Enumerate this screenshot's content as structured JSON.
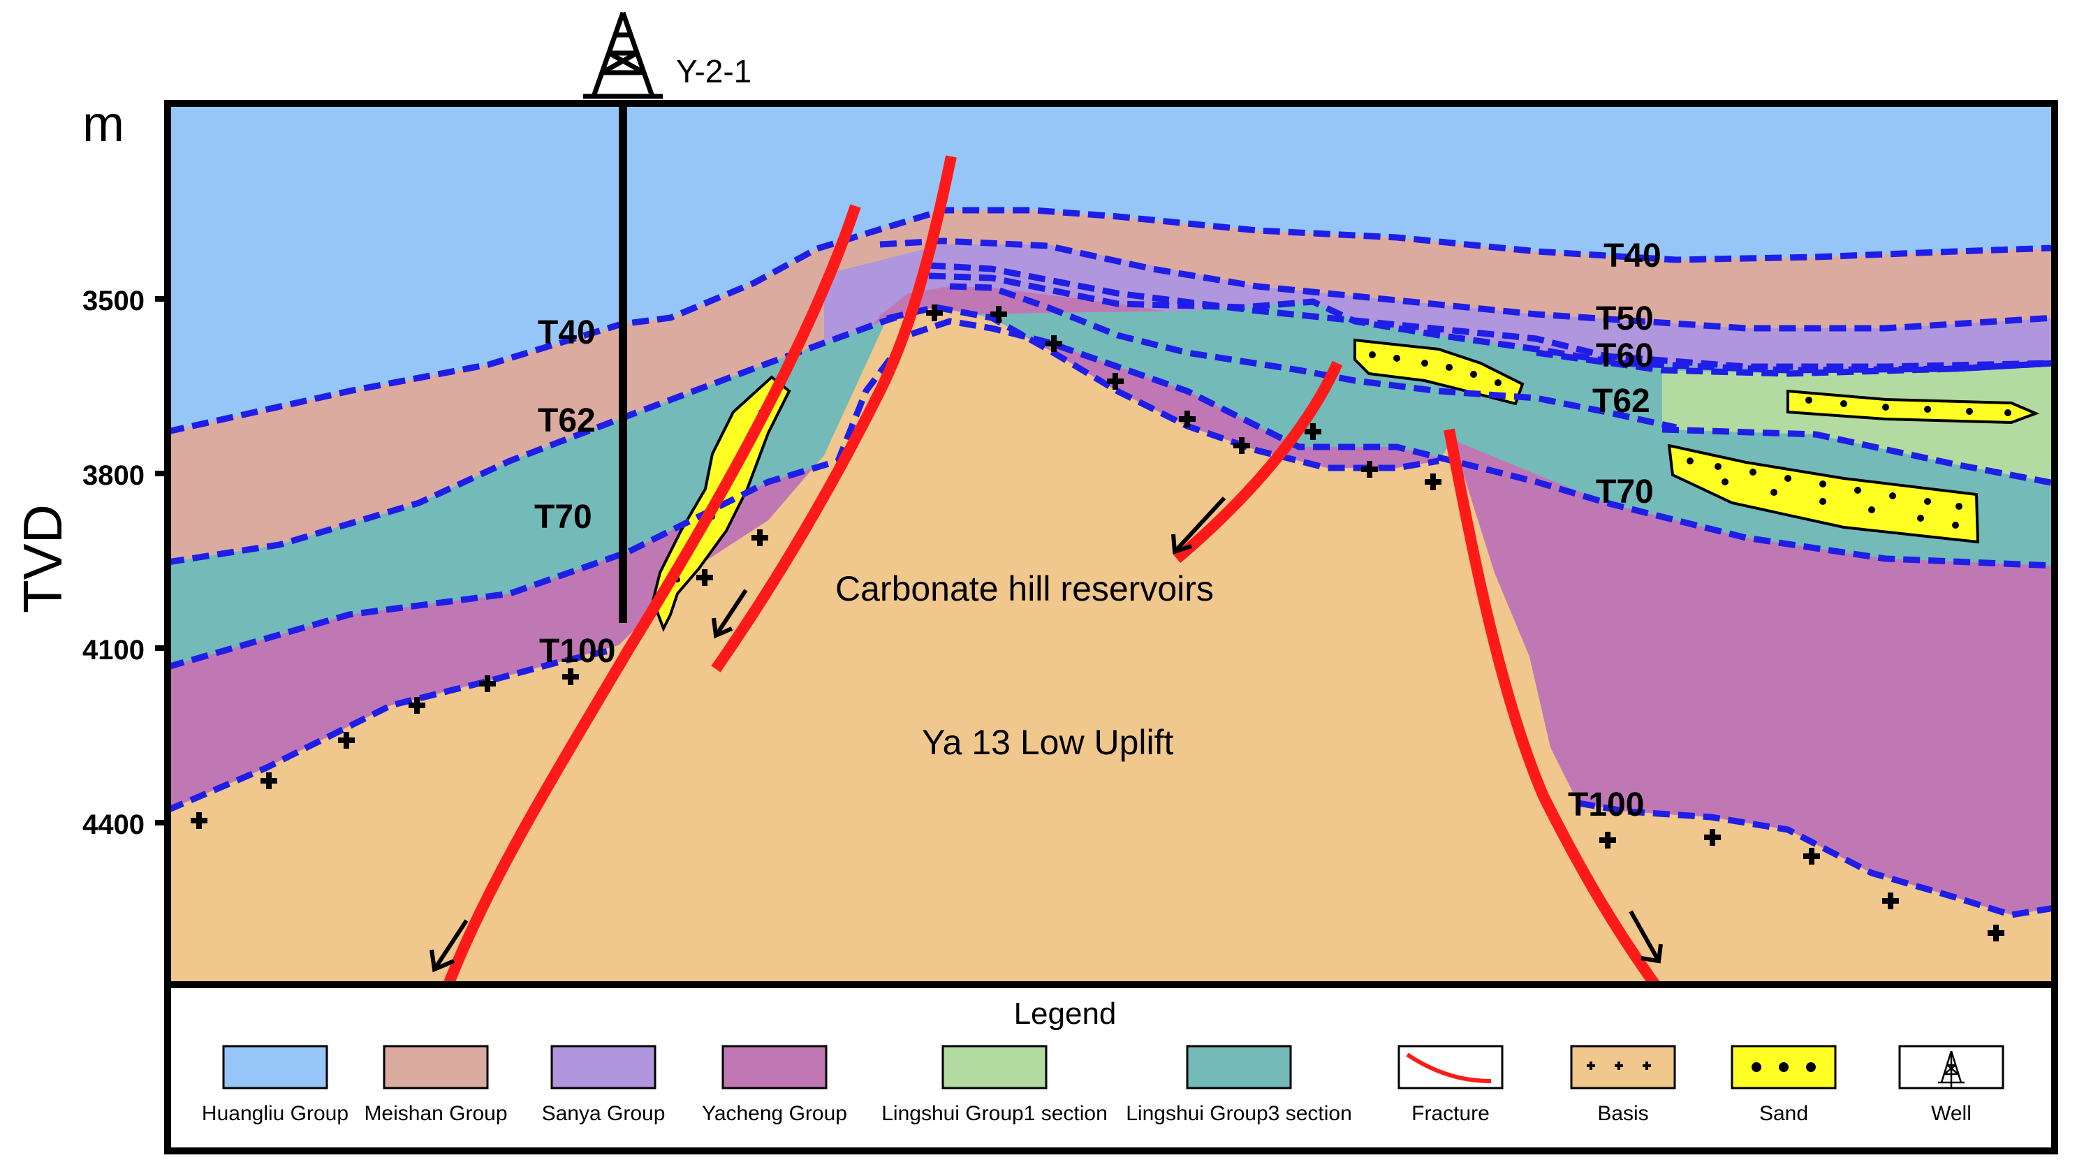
{
  "well": {
    "name": "Y-2-1",
    "icon": "derrick-icon"
  },
  "axis": {
    "unit": "m",
    "title": "TVD",
    "ticks": [
      "3500",
      "3800",
      "4100",
      "4400"
    ]
  },
  "horizons": {
    "left_T40": "T40",
    "left_T62": "T62",
    "left_T70": "T70",
    "left_T100": "T100",
    "right_T40": "T40",
    "right_T50": "T50",
    "right_T60": "T60",
    "right_T62": "T62",
    "right_T70": "T70",
    "right_T100": "T100"
  },
  "annotations": {
    "reservoir": "Carbonate hill reservoirs",
    "uplift": "Ya 13 Low Uplift"
  },
  "legend": {
    "title": "Legend",
    "items": [
      {
        "label": "Huangliu Group",
        "color": "#95c6f7"
      },
      {
        "label": "Meishan Group",
        "color": "#dcaba0"
      },
      {
        "label": "Sanya Group",
        "color": "#b096dc"
      },
      {
        "label": "Yacheng Group",
        "color": "#c078b4"
      },
      {
        "label": "Lingshui Group1 section",
        "color": "#b3daa0"
      },
      {
        "label": "Lingshui Group3 section",
        "color": "#73bab9"
      },
      {
        "label": "Fracture",
        "color": "#ff1a1a"
      },
      {
        "label": "Basis",
        "color": "#f0c78c"
      },
      {
        "label": "Sand",
        "color": "#ffff24"
      },
      {
        "label": "Well",
        "color": "#ffffff"
      }
    ]
  },
  "colors": {
    "horizon_line": "#1e1ee6",
    "fault_line": "#ff1a1a",
    "frame": "#000000"
  }
}
